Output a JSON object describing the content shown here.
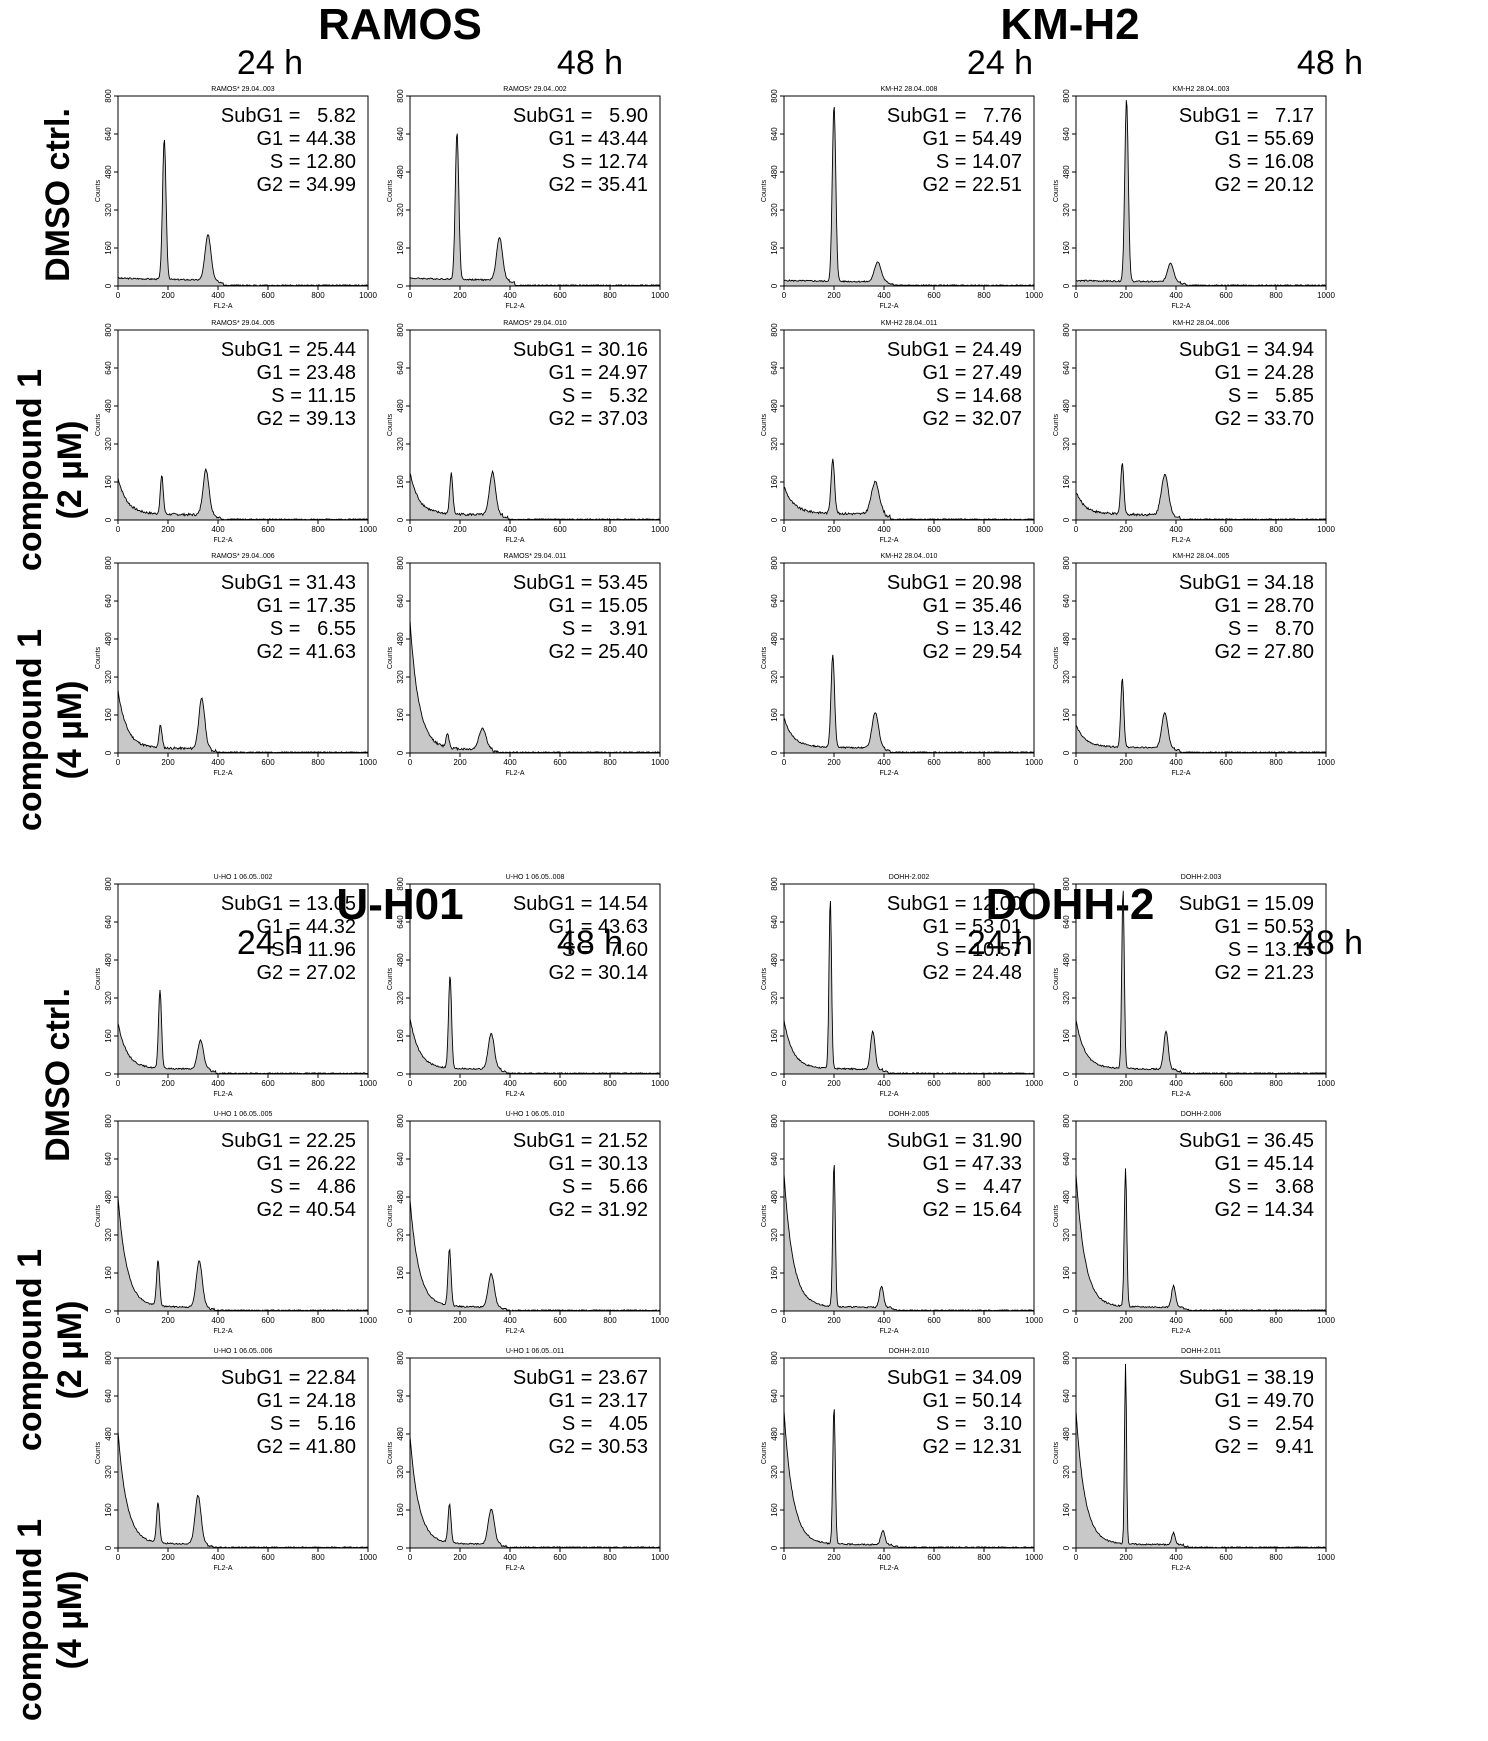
{
  "panel_titles": [
    "RAMOS",
    "KM-H2",
    "U-H01",
    "DOHH-2"
  ],
  "time_labels": [
    "24 h",
    "48 h"
  ],
  "row_labels": [
    {
      "line1": "DMSO ctrl.",
      "line2": ""
    },
    {
      "line1": "compound 1",
      "line2": "(2 µM)"
    },
    {
      "line1": "compound 1",
      "line2": "(4 µM)"
    }
  ],
  "axis": {
    "xlabel": "FL2-A",
    "ylabel": "Counts",
    "xticks": [
      "0",
      "200",
      "400",
      "600",
      "800",
      "1000"
    ],
    "yticks": [
      "0",
      "160",
      "320",
      "480",
      "640",
      "800"
    ]
  },
  "chart_data": [
    {
      "type": "area",
      "panel": "RAMOS",
      "time": "24 h",
      "row": "DMSO ctrl.",
      "file": "RAMOS* 29.04..003",
      "stats": [
        "SubG1 =   5.82",
        "G1 = 44.38",
        "S = 12.80",
        "G2 = 34.99"
      ],
      "xlim": [
        0,
        1000
      ],
      "ylim": [
        0,
        800
      ],
      "profile": {
        "base": 25,
        "noise": "low",
        "g1": [
          185,
          7,
          590
        ],
        "g2": [
          360,
          12,
          190
        ],
        "sub": 0
      }
    },
    {
      "type": "area",
      "panel": "RAMOS",
      "time": "48 h",
      "row": "DMSO ctrl.",
      "file": "RAMOS* 29.04..002",
      "stats": [
        "SubG1 =   5.90",
        "G1 = 43.44",
        "S = 12.74",
        "G2 = 35.41"
      ],
      "xlim": [
        0,
        1000
      ],
      "ylim": [
        0,
        800
      ],
      "profile": {
        "base": 25,
        "noise": "low",
        "g1": [
          188,
          7,
          620
        ],
        "g2": [
          358,
          12,
          180
        ],
        "sub": 0
      }
    },
    {
      "type": "area",
      "panel": "KM-H2",
      "time": "24 h",
      "row": "DMSO ctrl.",
      "file": "KM-H2  28.04..008",
      "stats": [
        "SubG1 =   7.76",
        "G1 = 54.49",
        "S = 14.07",
        "G2 = 22.51"
      ],
      "xlim": [
        0,
        1000
      ],
      "ylim": [
        0,
        800
      ],
      "profile": {
        "base": 15,
        "noise": "low",
        "g1": [
          200,
          7,
          740
        ],
        "g2": [
          375,
          13,
          85
        ],
        "sub": 0
      }
    },
    {
      "type": "area",
      "panel": "KM-H2",
      "time": "48 h",
      "row": "DMSO ctrl.",
      "file": "KM-H2  28.04..003",
      "stats": [
        "SubG1 =   7.17",
        "G1 = 55.69",
        "S = 16.08",
        "G2 = 20.12"
      ],
      "xlim": [
        0,
        1000
      ],
      "ylim": [
        0,
        800
      ],
      "profile": {
        "base": 15,
        "noise": "low",
        "g1": [
          202,
          7,
          770
        ],
        "g2": [
          378,
          12,
          80
        ],
        "sub": 0
      }
    },
    {
      "type": "area",
      "panel": "RAMOS",
      "time": "24 h",
      "row": "compound 1 (2 µM)",
      "file": "RAMOS* 29.04..005",
      "stats": [
        "SubG1 = 25.44",
        "G1 = 23.48",
        "S = 11.15",
        "G2 = 39.13"
      ],
      "xlim": [
        0,
        1000
      ],
      "ylim": [
        0,
        800
      ],
      "profile": {
        "base": 20,
        "noise": "mid",
        "g1": [
          175,
          6,
          160
        ],
        "g2": [
          352,
          12,
          190
        ],
        "sub": 150
      }
    },
    {
      "type": "area",
      "panel": "RAMOS",
      "time": "48 h",
      "row": "compound 1 (2 µM)",
      "file": "RAMOS* 29.04..010",
      "stats": [
        "SubG1 = 30.16",
        "G1 = 24.97",
        "S =   5.32",
        "G2 = 37.03"
      ],
      "xlim": [
        0,
        1000
      ],
      "ylim": [
        0,
        800
      ],
      "profile": {
        "base": 20,
        "noise": "mid",
        "g1": [
          165,
          6,
          170
        ],
        "g2": [
          330,
          12,
          180
        ],
        "sub": 170
      }
    },
    {
      "type": "area",
      "panel": "KM-H2",
      "time": "24 h",
      "row": "compound 1 (2 µM)",
      "file": "KM-H2  28.04..011",
      "stats": [
        "SubG1 = 24.49",
        "G1 = 27.49",
        "S = 14.68",
        "G2 = 32.07"
      ],
      "xlim": [
        0,
        1000
      ],
      "ylim": [
        0,
        800
      ],
      "profile": {
        "base": 25,
        "noise": "mid",
        "g1": [
          195,
          7,
          230
        ],
        "g2": [
          365,
          16,
          135
        ],
        "sub": 110
      }
    },
    {
      "type": "area",
      "panel": "KM-H2",
      "time": "48 h",
      "row": "compound 1 (2 µM)",
      "file": "KM-H2  28.04..006",
      "stats": [
        "SubG1 = 34.94",
        "G1 = 24.28",
        "S =   5.85",
        "G2 = 33.70"
      ],
      "xlim": [
        0,
        1000
      ],
      "ylim": [
        0,
        800
      ],
      "profile": {
        "base": 20,
        "noise": "mid",
        "g1": [
          185,
          6,
          220
        ],
        "g2": [
          355,
          14,
          170
        ],
        "sub": 90
      }
    },
    {
      "type": "area",
      "panel": "RAMOS",
      "time": "24 h",
      "row": "compound 1 (4 µM)",
      "file": "RAMOS* 29.04..006",
      "stats": [
        "SubG1 = 31.43",
        "G1 = 17.35",
        "S =   6.55",
        "G2 = 41.63"
      ],
      "xlim": [
        0,
        1000
      ],
      "ylim": [
        0,
        800
      ],
      "profile": {
        "base": 15,
        "noise": "mid",
        "g1": [
          170,
          6,
          95
        ],
        "g2": [
          335,
          12,
          210
        ],
        "sub": 240
      }
    },
    {
      "type": "area",
      "panel": "RAMOS",
      "time": "48 h",
      "row": "compound 1 (4 µM)",
      "file": "RAMOS* 29.04..011",
      "stats": [
        "SubG1 = 53.45",
        "G1 = 15.05",
        "S =   3.91",
        "G2 = 25.40"
      ],
      "xlim": [
        0,
        1000
      ],
      "ylim": [
        0,
        800
      ],
      "profile": {
        "base": 10,
        "noise": "mid",
        "g1": [
          150,
          6,
          60
        ],
        "g2": [
          290,
          14,
          90
        ],
        "sub": 540
      }
    },
    {
      "type": "area",
      "panel": "KM-H2",
      "time": "24 h",
      "row": "compound 1 (4 µM)",
      "file": "KM-H2  28.04..010",
      "stats": [
        "SubG1 = 20.98",
        "G1 = 35.46",
        "S = 13.42",
        "G2 = 29.54"
      ],
      "xlim": [
        0,
        1000
      ],
      "ylim": [
        0,
        800
      ],
      "profile": {
        "base": 20,
        "noise": "low",
        "g1": [
          195,
          7,
          390
        ],
        "g2": [
          365,
          13,
          150
        ],
        "sub": 120
      }
    },
    {
      "type": "area",
      "panel": "KM-H2",
      "time": "48 h",
      "row": "compound 1 (4 µM)",
      "file": "KM-H2  28.04..005",
      "stats": [
        "SubG1 = 34.18",
        "G1 = 28.70",
        "S =   8.70",
        "G2 = 27.80"
      ],
      "xlim": [
        0,
        1000
      ],
      "ylim": [
        0,
        800
      ],
      "profile": {
        "base": 20,
        "noise": "low",
        "g1": [
          185,
          6,
          290
        ],
        "g2": [
          355,
          12,
          150
        ],
        "sub": 90
      }
    },
    {
      "type": "area",
      "panel": "U-H01",
      "time": "24 h",
      "row": "DMSO ctrl.",
      "file": "U-HO 1  06.05..002",
      "stats": [
        "SubG1 = 13.05",
        "G1 = 44.32",
        "S = 11.96",
        "G2 = 27.02"
      ],
      "xlim": [
        0,
        1000
      ],
      "ylim": [
        0,
        800
      ],
      "profile": {
        "base": 18,
        "noise": "low",
        "g1": [
          168,
          6,
          330
        ],
        "g2": [
          330,
          12,
          120
        ],
        "sub": 190
      }
    },
    {
      "type": "area",
      "panel": "U-H01",
      "time": "48 h",
      "row": "DMSO ctrl.",
      "file": "U-HO 1  06.05..008",
      "stats": [
        "SubG1 = 14.54",
        "G1 = 43.63",
        "S =   7.60",
        "G2 = 30.14"
      ],
      "xlim": [
        0,
        1000
      ],
      "ylim": [
        0,
        800
      ],
      "profile": {
        "base": 18,
        "noise": "low",
        "g1": [
          160,
          6,
          390
        ],
        "g2": [
          325,
          12,
          150
        ],
        "sub": 210
      }
    },
    {
      "type": "area",
      "panel": "DOHH-2",
      "time": "24 h",
      "row": "DMSO ctrl.",
      "file": "DOHH-2.002",
      "stats": [
        "SubG1 = 12.00",
        "G1 = 53.01",
        "S = 10.57",
        "G2 = 24.48"
      ],
      "xlim": [
        0,
        1000
      ],
      "ylim": [
        0,
        800
      ],
      "profile": {
        "base": 18,
        "noise": "low",
        "g1": [
          185,
          5,
          720
        ],
        "g2": [
          355,
          9,
          160
        ],
        "sub": 200
      }
    },
    {
      "type": "area",
      "panel": "DOHH-2",
      "time": "48 h",
      "row": "DMSO ctrl.",
      "file": "DOHH-2.003",
      "stats": [
        "SubG1 = 15.09",
        "G1 = 50.53",
        "S = 13.13",
        "G2 = 21.23"
      ],
      "xlim": [
        0,
        1000
      ],
      "ylim": [
        0,
        800
      ],
      "profile": {
        "base": 18,
        "noise": "low",
        "g1": [
          188,
          5,
          760
        ],
        "g2": [
          360,
          9,
          160
        ],
        "sub": 200
      }
    },
    {
      "type": "area",
      "panel": "U-H01",
      "time": "24 h",
      "row": "compound 1 (2 µM)",
      "file": "U-HO 1  06.05..005",
      "stats": [
        "SubG1 = 22.25",
        "G1 = 26.22",
        "S =   4.86",
        "G2 = 40.54"
      ],
      "xlim": [
        0,
        1000
      ],
      "ylim": [
        0,
        800
      ],
      "profile": {
        "base": 12,
        "noise": "low",
        "g1": [
          160,
          6,
          190
        ],
        "g2": [
          325,
          12,
          195
        ],
        "sub": 460
      }
    },
    {
      "type": "area",
      "panel": "U-H01",
      "time": "48 h",
      "row": "compound 1 (2 µM)",
      "file": "U-HO 1  06.05..010",
      "stats": [
        "SubG1 = 21.52",
        "G1 = 30.13",
        "S =   5.66",
        "G2 = 31.92"
      ],
      "xlim": [
        0,
        1000
      ],
      "ylim": [
        0,
        800
      ],
      "profile": {
        "base": 12,
        "noise": "low",
        "g1": [
          158,
          6,
          240
        ],
        "g2": [
          325,
          12,
          140
        ],
        "sub": 450
      }
    },
    {
      "type": "area",
      "panel": "DOHH-2",
      "time": "24 h",
      "row": "compound 1 (2 µM)",
      "file": "DOHH-2.005",
      "stats": [
        "SubG1 = 31.90",
        "G1 = 47.33",
        "S =   4.47",
        "G2 = 15.64"
      ],
      "xlim": [
        0,
        1000
      ],
      "ylim": [
        0,
        800
      ],
      "profile": {
        "base": 12,
        "noise": "low",
        "g1": [
          200,
          5,
          610
        ],
        "g2": [
          390,
          8,
          90
        ],
        "sub": 560
      }
    },
    {
      "type": "area",
      "panel": "DOHH-2",
      "time": "48 h",
      "row": "compound 1 (2 µM)",
      "file": "DOHH-2.006",
      "stats": [
        "SubG1 = 36.45",
        "G1 = 45.14",
        "S =   3.68",
        "G2 = 14.34"
      ],
      "xlim": [
        0,
        1000
      ],
      "ylim": [
        0,
        800
      ],
      "profile": {
        "base": 12,
        "noise": "low",
        "g1": [
          198,
          5,
          580
        ],
        "g2": [
          390,
          8,
          90
        ],
        "sub": 560
      }
    },
    {
      "type": "area",
      "panel": "U-H01",
      "time": "24 h",
      "row": "compound 1 (4 µM)",
      "file": "U-HO 1  06.05..006",
      "stats": [
        "SubG1 = 22.84",
        "G1 = 24.18",
        "S =   5.16",
        "G2 = 41.80"
      ],
      "xlim": [
        0,
        1000
      ],
      "ylim": [
        0,
        800
      ],
      "profile": {
        "base": 12,
        "noise": "low",
        "g1": [
          160,
          6,
          170
        ],
        "g2": [
          320,
          12,
          205
        ],
        "sub": 470
      }
    },
    {
      "type": "area",
      "panel": "U-H01",
      "time": "48 h",
      "row": "compound 1 (4 µM)",
      "file": "U-HO 1  06.05..011",
      "stats": [
        "SubG1 = 23.67",
        "G1 = 23.17",
        "S =   4.05",
        "G2 = 30.53"
      ],
      "xlim": [
        0,
        1000
      ],
      "ylim": [
        0,
        800
      ],
      "profile": {
        "base": 12,
        "noise": "low",
        "g1": [
          158,
          6,
          160
        ],
        "g2": [
          325,
          12,
          150
        ],
        "sub": 450
      }
    },
    {
      "type": "area",
      "panel": "DOHH-2",
      "time": "24 h",
      "row": "compound 1 (4 µM)",
      "file": "DOHH-2.010",
      "stats": [
        "SubG1 = 34.09",
        "G1 = 50.14",
        "S =   3.10",
        "G2 = 12.31"
      ],
      "xlim": [
        0,
        1000
      ],
      "ylim": [
        0,
        800
      ],
      "profile": {
        "base": 10,
        "noise": "low",
        "g1": [
          200,
          5,
          580
        ],
        "g2": [
          395,
          8,
          60
        ],
        "sub": 560
      }
    },
    {
      "type": "area",
      "panel": "DOHH-2",
      "time": "48 h",
      "row": "compound 1 (4 µM)",
      "file": "DOHH-2.011",
      "stats": [
        "SubG1 = 38.19",
        "G1 = 49.70",
        "S =   2.54",
        "G2 =   9.41"
      ],
      "xlim": [
        0,
        1000
      ],
      "ylim": [
        0,
        800
      ],
      "profile": {
        "base": 10,
        "noise": "low",
        "g1": [
          198,
          4,
          760
        ],
        "g2": [
          390,
          7,
          50
        ],
        "sub": 560
      }
    }
  ]
}
